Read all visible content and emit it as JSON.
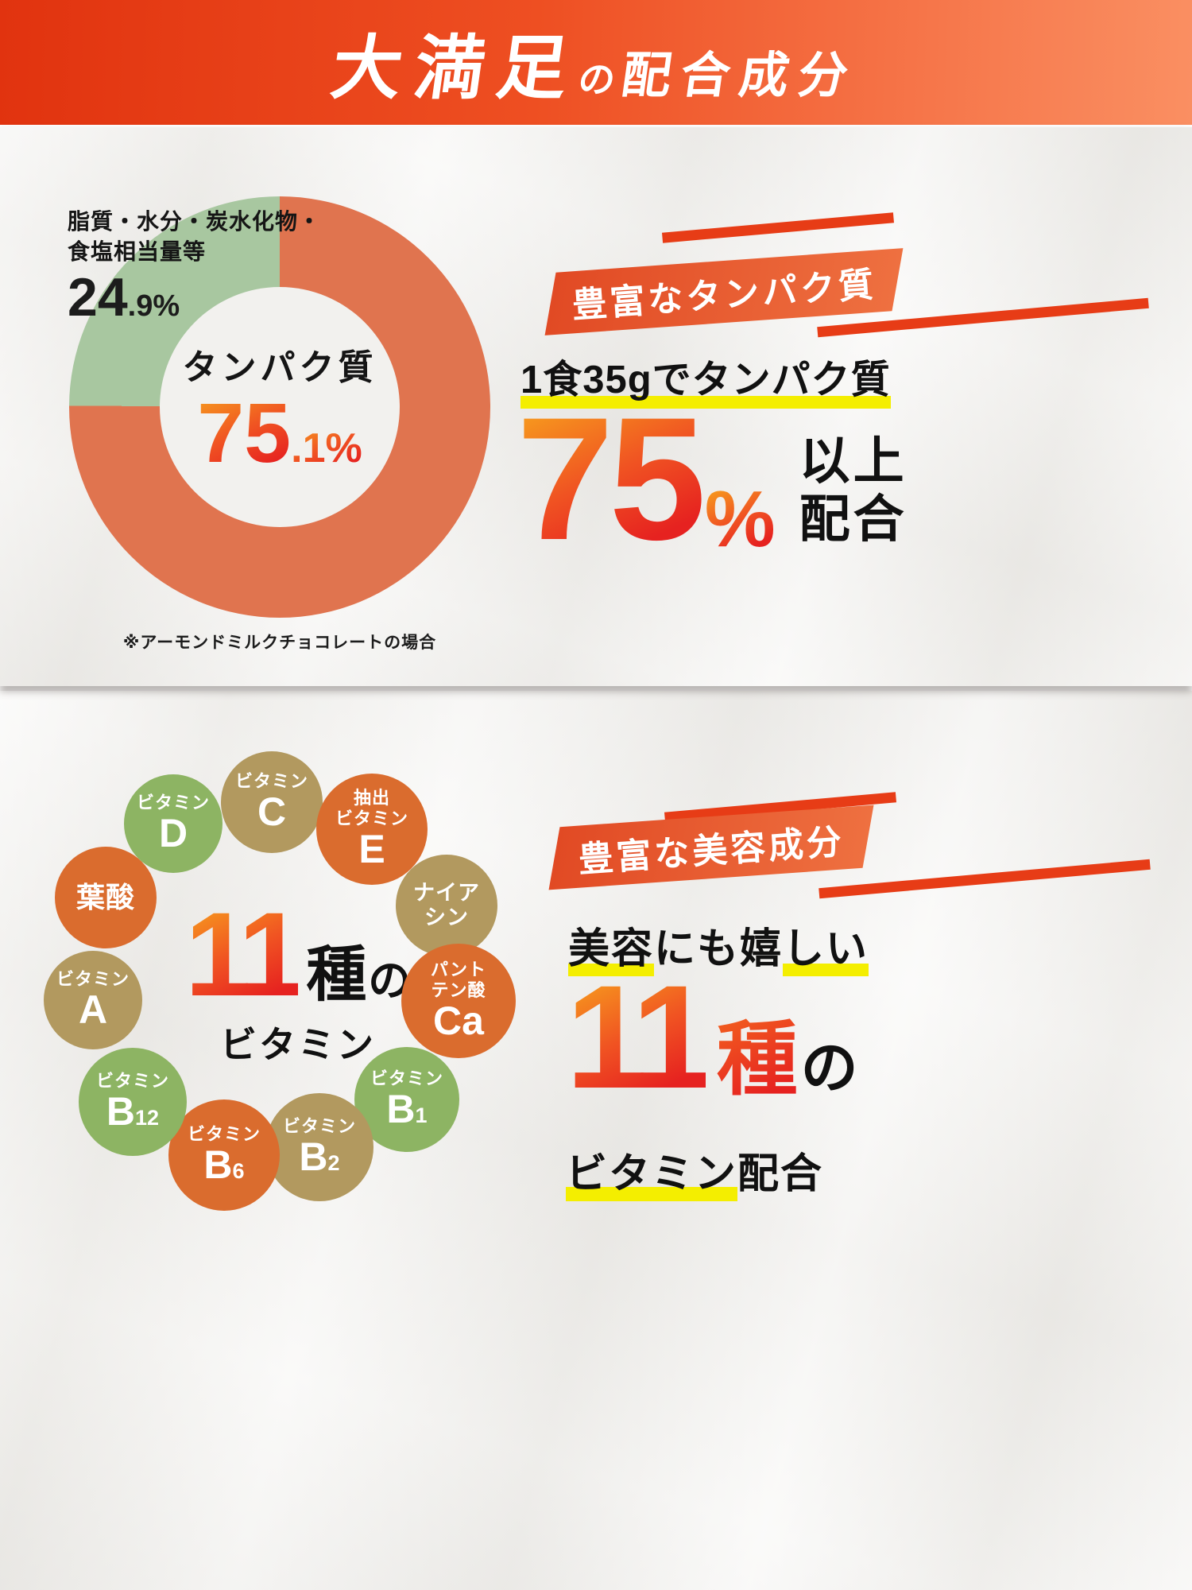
{
  "header": {
    "title_main": "大満足",
    "title_particle": "の",
    "title_rest": "配合成分"
  },
  "protein_section": {
    "donut": {
      "other_label_line1": "脂質・水分・炭水化物・",
      "other_label_line2": "食塩相当量等",
      "other_value_int": "24",
      "other_value_frac": ".9%",
      "center_label": "タンパク質",
      "center_value_int": "75",
      "center_value_frac": ".1%",
      "footnote": "※アーモンドミルクチョコレートの場合"
    },
    "callout": {
      "ribbon_label": "豊富なタンパク質",
      "headline": "1食35gでタンパク質",
      "big_number": "75",
      "percent_sign": "%",
      "suffix_line1": "以上",
      "suffix_line2": "配合"
    }
  },
  "vitamin_section": {
    "ring_center": {
      "number": "11",
      "unit": "種",
      "particle": "の",
      "label": "ビタミン"
    },
    "bubbles": [
      {
        "name": "vitamin-d",
        "label_lines": [
          "ビタミン"
        ],
        "big": "D",
        "sub": "",
        "color": "green",
        "variant": ""
      },
      {
        "name": "vitamin-c",
        "label_lines": [
          "ビタミン"
        ],
        "big": "C",
        "sub": "",
        "color": "tan",
        "variant": ""
      },
      {
        "name": "extracted-vitamin-e",
        "label_lines": [
          "抽出",
          "ビタミン"
        ],
        "big": "E",
        "sub": "",
        "color": "orange",
        "variant": ""
      },
      {
        "name": "niacin",
        "label_lines": [
          "ナイア",
          "シン"
        ],
        "big": "",
        "sub": "",
        "color": "tan",
        "variant": "text"
      },
      {
        "name": "pantothenate-ca",
        "label_lines": [
          "パント",
          "テン酸"
        ],
        "big": "Ca",
        "sub": "",
        "color": "orange",
        "variant": ""
      },
      {
        "name": "vitamin-b1",
        "label_lines": [
          "ビタミン"
        ],
        "big": "B",
        "sub": "1",
        "color": "green",
        "variant": ""
      },
      {
        "name": "vitamin-b2",
        "label_lines": [
          "ビタミン"
        ],
        "big": "B",
        "sub": "2",
        "color": "tan",
        "variant": ""
      },
      {
        "name": "vitamin-b6",
        "label_lines": [
          "ビタミン"
        ],
        "big": "B",
        "sub": "6",
        "color": "orange",
        "variant": ""
      },
      {
        "name": "vitamin-b12",
        "label_lines": [
          "ビタミン"
        ],
        "big": "B",
        "sub": "12",
        "color": "green",
        "variant": ""
      },
      {
        "name": "vitamin-a",
        "label_lines": [
          "ビタミン"
        ],
        "big": "A",
        "sub": "",
        "color": "tan",
        "variant": ""
      },
      {
        "name": "folic-acid",
        "label_lines": [
          "葉酸"
        ],
        "big": "",
        "sub": "",
        "color": "orange",
        "variant": "text-large"
      }
    ],
    "callout": {
      "ribbon_label": "豊富な美容成分",
      "line1_hl1": "美容",
      "line1_mid": "にも嬉",
      "line1_hl2": "しい",
      "big_number": "11",
      "unit": "種",
      "particle": "の",
      "line3_hl": "ビタミン",
      "line3_rest": "配合"
    }
  },
  "colors": {
    "banner_gradient_start": "#e1330f",
    "banner_gradient_end": "#fa8f62",
    "donut_protein": "#e0744f",
    "donut_other": "#a8c7a0",
    "ribbon_orange": "#e4562b",
    "accent_red": "#e73c16",
    "highlight_yellow": "#f4ee00",
    "bubble_green": "#8db463",
    "bubble_tan": "#b2995f",
    "bubble_orange": "#da6c2e",
    "number_gradient_start": "#f6941e",
    "number_gradient_end": "#e62220"
  },
  "chart_data": [
    {
      "type": "pie",
      "variant": "donut",
      "labels": [
        "タンパク質",
        "脂質・水分・炭水化物・食塩相当量等"
      ],
      "values": [
        75.1,
        24.9
      ],
      "colors": [
        "#e0744f",
        "#a8c7a0"
      ],
      "center_label": "タンパク質 75.1%",
      "start_angle_deg": 0,
      "direction": "clockwise",
      "legend_position": "none",
      "footnote": "※アーモンドミルクチョコレートの場合"
    },
    {
      "type": "table",
      "title": "11種のビタミン",
      "items": [
        "ビタミンD",
        "ビタミンC",
        "抽出ビタミンE",
        "ナイアシン",
        "パントテン酸Ca",
        "ビタミンB1",
        "ビタミンB2",
        "ビタミンB6",
        "ビタミンB12",
        "ビタミンA",
        "葉酸"
      ]
    }
  ]
}
